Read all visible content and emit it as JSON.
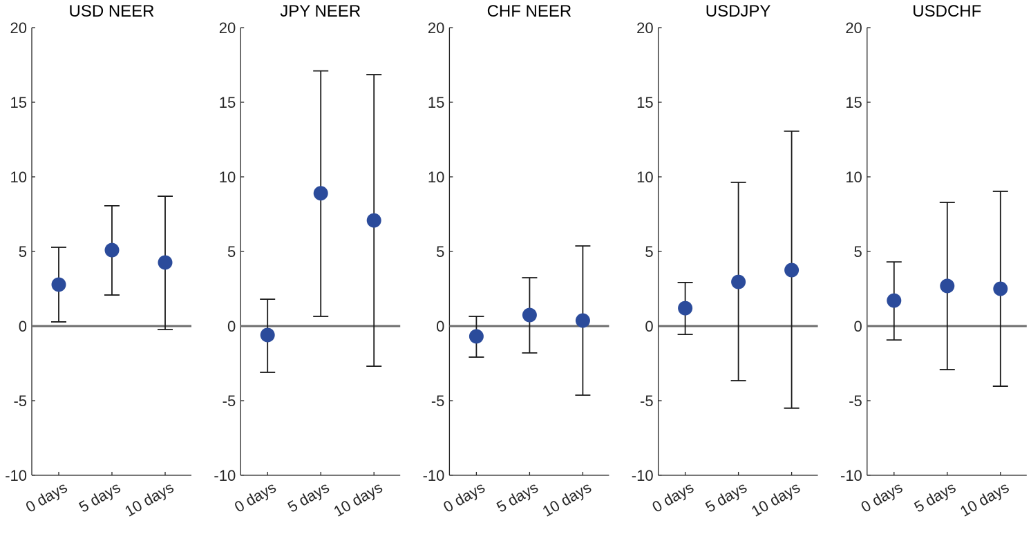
{
  "chart_data": [
    {
      "type": "scatter",
      "title": "USD NEER",
      "categories": [
        "0 days",
        "5 days",
        "10 days"
      ],
      "values": [
        2.78,
        5.09,
        4.26
      ],
      "err_high": [
        5.28,
        8.06,
        8.7
      ],
      "err_low": [
        0.28,
        2.08,
        -0.23
      ],
      "ylim": [
        -10,
        20
      ],
      "yticks": [
        "-10",
        "-5",
        "0",
        "5",
        "10",
        "15",
        "20"
      ]
    },
    {
      "type": "scatter",
      "title": "JPY NEER",
      "categories": [
        "0 days",
        "5 days",
        "10 days"
      ],
      "values": [
        -0.6,
        8.9,
        7.08
      ],
      "err_high": [
        1.8,
        17.1,
        16.85
      ],
      "err_low": [
        -3.1,
        0.65,
        -2.69
      ],
      "ylim": [
        -10,
        20
      ],
      "yticks": [
        "-10",
        "-5",
        "0",
        "5",
        "10",
        "15",
        "20"
      ]
    },
    {
      "type": "scatter",
      "title": "CHF NEER",
      "categories": [
        "0 days",
        "5 days",
        "10 days"
      ],
      "values": [
        -0.69,
        0.74,
        0.37
      ],
      "err_high": [
        0.65,
        3.24,
        5.37
      ],
      "err_low": [
        -2.08,
        -1.8,
        -4.63
      ],
      "ylim": [
        -10,
        20
      ],
      "yticks": [
        "-10",
        "-5",
        "0",
        "5",
        "10",
        "15",
        "20"
      ]
    },
    {
      "type": "scatter",
      "title": "USDJPY",
      "categories": [
        "0 days",
        "5 days",
        "10 days"
      ],
      "values": [
        1.2,
        2.96,
        3.75
      ],
      "err_high": [
        2.92,
        9.63,
        13.06
      ],
      "err_low": [
        -0.56,
        -3.66,
        -5.5
      ],
      "ylim": [
        -10,
        20
      ],
      "yticks": [
        "-10",
        "-5",
        "0",
        "5",
        "10",
        "15",
        "20"
      ]
    },
    {
      "type": "scatter",
      "title": "USDCHF",
      "categories": [
        "0 days",
        "5 days",
        "10 days"
      ],
      "values": [
        1.71,
        2.69,
        2.5
      ],
      "err_high": [
        4.3,
        8.29,
        9.03
      ],
      "err_low": [
        -0.93,
        -2.92,
        -4.03
      ],
      "ylim": [
        -10,
        20
      ],
      "yticks": [
        "-10",
        "-5",
        "0",
        "5",
        "10",
        "15",
        "20"
      ]
    }
  ],
  "colors": {
    "point": "#2b4b9b",
    "zero_line": "#6e6e6e",
    "axis": "#262626",
    "error_bar": "#1a1a1a"
  }
}
